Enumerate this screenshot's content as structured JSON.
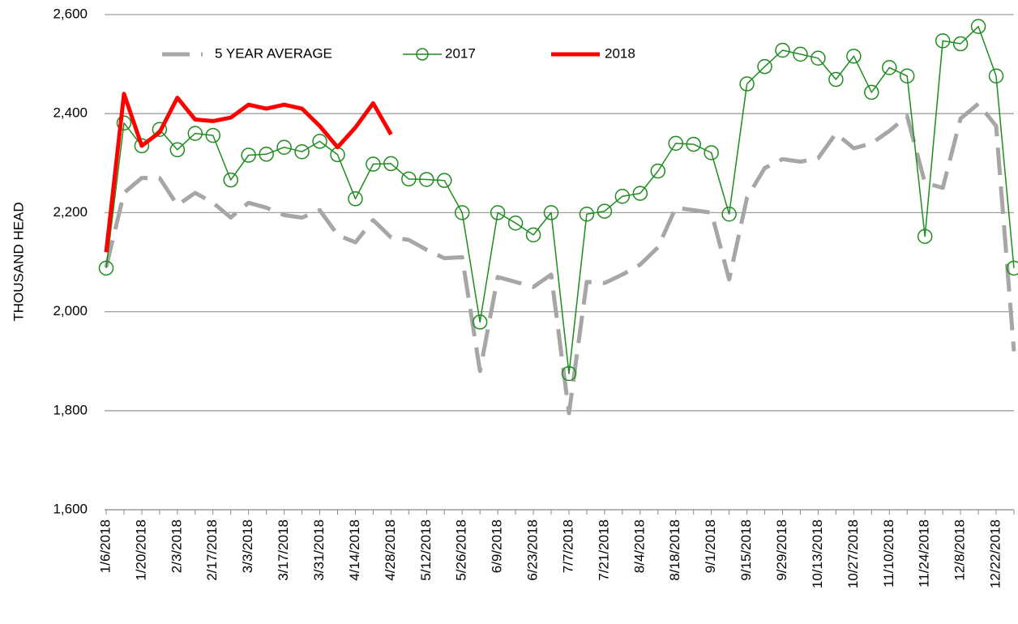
{
  "chart_data": {
    "type": "line",
    "y_label": "THOUSAND HEAD",
    "categories": [
      "1/6/2018",
      null,
      "1/20/2018",
      null,
      "2/3/2018",
      null,
      "2/17/2018",
      null,
      "3/3/2018",
      null,
      "3/17/2018",
      null,
      "3/31/2018",
      null,
      "4/14/2018",
      null,
      "4/28/2018",
      null,
      "5/12/2018",
      null,
      "5/26/2018",
      null,
      "6/9/2018",
      null,
      "6/23/2018",
      null,
      "7/7/2018",
      null,
      "7/21/2018",
      null,
      "8/4/2018",
      null,
      "8/18/2018",
      null,
      "9/1/2018",
      null,
      "9/15/2018",
      null,
      "9/29/2018",
      null,
      "10/13/2018",
      null,
      "10/27/2018",
      null,
      "11/10/2018",
      null,
      "11/24/2018",
      null,
      "12/8/2018",
      null,
      "12/22/2018",
      null
    ],
    "series": [
      {
        "name": "5 YEAR AVERAGE",
        "color": "#a6a6a6",
        "style": "dashed",
        "values": [
          2090,
          2240,
          2270,
          2270,
          2215,
          2240,
          2220,
          2190,
          2220,
          2210,
          2195,
          2190,
          2205,
          2155,
          2140,
          2185,
          2150,
          2145,
          2125,
          2108,
          2110,
          1880,
          2070,
          2060,
          2050,
          2075,
          1795,
          2060,
          2058,
          2075,
          2095,
          2130,
          2210,
          2205,
          2200,
          2065,
          2230,
          2290,
          2308,
          2303,
          2310,
          2360,
          2330,
          2340,
          2365,
          2395,
          2260,
          2250,
          2390,
          2420,
          2375,
          1920
        ]
      },
      {
        "name": "2017",
        "color": "#1e8c1e",
        "style": "marker",
        "values": [
          2088,
          2381,
          2335,
          2368,
          2327,
          2360,
          2356,
          2266,
          2316,
          2318,
          2332,
          2323,
          2344,
          2317,
          2228,
          2298,
          2299,
          2268,
          2267,
          2265,
          2200,
          1979,
          2200,
          2179,
          2155,
          2200,
          1875,
          2197,
          2203,
          2233,
          2239,
          2284,
          2340,
          2338,
          2321,
          2197,
          2460,
          2495,
          2528,
          2520,
          2512,
          2469,
          2516,
          2443,
          2493,
          2476,
          2152,
          2547,
          2541,
          2576,
          2476,
          2088
        ]
      },
      {
        "name": "2018",
        "color": "#ff0000",
        "style": "thick",
        "values": [
          2120,
          2440,
          2335,
          2362,
          2432,
          2388,
          2385,
          2392,
          2418,
          2410,
          2418,
          2410,
          2375,
          2332,
          2372,
          2421,
          2358,
          null,
          null,
          null,
          null,
          null,
          null,
          null,
          null,
          null,
          null,
          null,
          null,
          null,
          null,
          null,
          null,
          null,
          null,
          null,
          null,
          null,
          null,
          null,
          null,
          null,
          null,
          null,
          null,
          null,
          null,
          null,
          null,
          null,
          null,
          null
        ]
      }
    ],
    "ylim": [
      1600,
      2600
    ],
    "yticks": [
      {
        "value": 1600,
        "label": "1,600"
      },
      {
        "value": 1800,
        "label": "1,800"
      },
      {
        "value": 2000,
        "label": "2,000"
      },
      {
        "value": 2200,
        "label": "2,200"
      },
      {
        "value": 2400,
        "label": "2,400"
      },
      {
        "value": 2600,
        "label": "2,600"
      }
    ],
    "grid": true,
    "legend": "top"
  }
}
